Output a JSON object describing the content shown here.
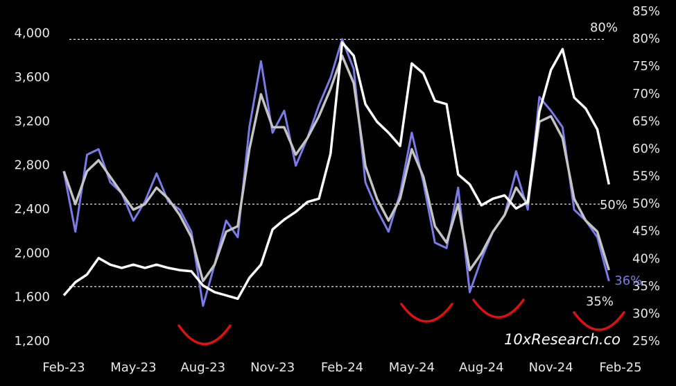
{
  "chart_data": {
    "type": "line",
    "categories": [
      "Feb-23",
      null,
      null,
      null,
      null,
      null,
      "May-23",
      null,
      null,
      null,
      null,
      null,
      "Aug-23",
      null,
      null,
      null,
      null,
      null,
      "Nov-23",
      null,
      null,
      null,
      null,
      null,
      "Feb-24",
      null,
      null,
      null,
      null,
      null,
      "May-24",
      null,
      null,
      null,
      null,
      null,
      "Aug-24",
      null,
      null,
      null,
      null,
      null,
      "Nov-24",
      null,
      null,
      null,
      null,
      null,
      "Feb-25"
    ],
    "series": [
      {
        "color": "#7b7be8",
        "axis": "y2",
        "values": [
          56,
          45,
          59,
          60,
          54,
          52,
          47,
          50.5,
          55.6,
          50.5,
          49,
          45,
          31.5,
          39,
          47,
          44,
          64,
          76,
          63,
          67,
          57,
          62,
          68,
          73,
          80,
          74.6,
          54,
          49,
          45,
          52,
          63,
          54,
          43,
          42,
          53,
          34,
          40,
          45,
          48,
          56,
          49,
          69.5,
          67,
          64,
          49,
          47,
          44,
          36,
          null
        ],
        "value_labels": [
          null,
          null,
          null,
          null,
          null,
          null,
          null,
          null,
          null,
          null,
          null,
          null,
          null,
          null,
          null,
          null,
          null,
          null,
          null,
          null,
          null,
          null,
          null,
          null,
          null,
          null,
          null,
          null,
          null,
          null,
          null,
          null,
          null,
          null,
          null,
          null,
          null,
          null,
          null,
          null,
          null,
          null,
          null,
          null,
          null,
          null,
          null,
          "36%",
          null
        ]
      },
      {
        "color": "#c4c4c4",
        "axis": "y2",
        "values": [
          56,
          50,
          56,
          58,
          55,
          52,
          49,
          50,
          53,
          51,
          48,
          44,
          36,
          39,
          45,
          46,
          60,
          70,
          64,
          64,
          59,
          62,
          66,
          71,
          77,
          72,
          57,
          51,
          47,
          51,
          60,
          55,
          46,
          43,
          50,
          38,
          41,
          45,
          48,
          53,
          50,
          65,
          66,
          62,
          51,
          47,
          45,
          38,
          null
        ]
      },
      {
        "color": "#ffffff",
        "values": [
          1620,
          1740,
          1810,
          1960,
          1900,
          1870,
          1900,
          1870,
          1900,
          1870,
          1850,
          1840,
          1710,
          1650,
          1620,
          1590,
          1780,
          1900,
          2220,
          2310,
          2380,
          2470,
          2500,
          2910,
          3920,
          3800,
          3360,
          3200,
          3100,
          2980,
          3730,
          3640,
          3390,
          3360,
          2720,
          2630,
          2440,
          2500,
          2530,
          2410,
          2470,
          3290,
          3670,
          3860,
          3420,
          3320,
          3130,
          2630,
          null
        ]
      }
    ],
    "ylim": [
      1200,
      4200
    ],
    "yticks": [
      {
        "value": 1200,
        "label": "1,200"
      },
      {
        "value": 1600,
        "label": "1,600"
      },
      {
        "value": 2000,
        "label": "2,000"
      },
      {
        "value": 2400,
        "label": "2,400"
      },
      {
        "value": 2800,
        "label": "2,800"
      },
      {
        "value": 3200,
        "label": "3,200"
      },
      {
        "value": 3600,
        "label": "3,600"
      },
      {
        "value": 4000,
        "label": "4,000"
      }
    ],
    "y2lim": [
      25,
      85
    ],
    "y2ticks": [
      {
        "value": 25,
        "label": "25%"
      },
      {
        "value": 30,
        "label": "30%"
      },
      {
        "value": 35,
        "label": "35%"
      },
      {
        "value": 40,
        "label": "40%"
      },
      {
        "value": 45,
        "label": "45%"
      },
      {
        "value": 50,
        "label": "50%"
      },
      {
        "value": 55,
        "label": "55%"
      },
      {
        "value": 60,
        "label": "60%"
      },
      {
        "value": 65,
        "label": "65%"
      },
      {
        "value": 70,
        "label": "70%"
      },
      {
        "value": 75,
        "label": "75%"
      },
      {
        "value": 80,
        "label": "80%"
      },
      {
        "value": 85,
        "label": "85%"
      }
    ],
    "reference_lines": [
      {
        "value": 80,
        "label": "80%",
        "axis": "y2"
      },
      {
        "value": 50,
        "label": "50%",
        "axis": "y2"
      },
      {
        "value": 35,
        "label": "35%",
        "axis": "y2"
      }
    ],
    "watermark": "10xResearch.co",
    "grid": false
  }
}
